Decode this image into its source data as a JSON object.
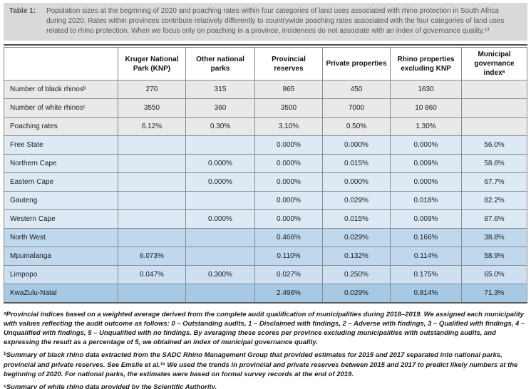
{
  "caption": {
    "label": "Table 1:",
    "text": "Population sizes at the beginning of 2020 and poaching rates within four categories of land uses associated with rhino protection in South Africa during 2020. Rates within provinces contribute relatively differently to countrywide poaching rates associated with the four categories of land uses related to rhino protection. When we focus only on poaching in a province, incidences do not associate with an index of governance quality.¹³"
  },
  "table": {
    "columns": [
      "",
      "Kruger National Park (KNP)",
      "Other national parks",
      "Provincial reserves",
      "Private properties",
      "Rhino properties excluding KNP",
      "Municipal governance indexᵃ"
    ],
    "rows": [
      {
        "label": "Number of black rhinosᵇ",
        "shade": "gray",
        "values": [
          "270",
          "315",
          "865",
          "450",
          "1630",
          ""
        ]
      },
      {
        "label": "Number of white rhinosᶜ",
        "shade": "gray",
        "values": [
          "3550",
          "360",
          "3500",
          "7000",
          "10 860",
          ""
        ]
      },
      {
        "label": "Poaching rates",
        "shade": "gray",
        "values": [
          "6.12%",
          "0.30%",
          "3.10%",
          "0.50%",
          "1.30%",
          ""
        ]
      },
      {
        "label": "Free State",
        "shade": "blue_light",
        "values": [
          "",
          "",
          "0.000%",
          "0.000%",
          "0.000%",
          "56.0%"
        ]
      },
      {
        "label": "Northern Cape",
        "shade": "blue_light",
        "values": [
          "",
          "0.000%",
          "0.000%",
          "0.015%",
          "0.009%",
          "58.6%"
        ]
      },
      {
        "label": "Eastern Cape",
        "shade": "blue_light",
        "values": [
          "",
          "0.000%",
          "0.000%",
          "0.000%",
          "0.000%",
          "67.7%"
        ]
      },
      {
        "label": "Gauteng",
        "shade": "blue_light",
        "values": [
          "",
          "",
          "0.000%",
          "0.029%",
          "0.018%",
          "82.2%"
        ]
      },
      {
        "label": "Western Cape",
        "shade": "blue_light",
        "values": [
          "",
          "0.000%",
          "0.000%",
          "0.015%",
          "0.009%",
          "87.6%"
        ]
      },
      {
        "label": "North West",
        "shade": "blue_med",
        "values": [
          "",
          "",
          "0.466%",
          "0.029%",
          "0.166%",
          "38.8%"
        ]
      },
      {
        "label": "Mpumalanga",
        "shade": "blue_med",
        "values": [
          "6.073%",
          "",
          "0.110%",
          "0.132%",
          "0.114%",
          "58.9%"
        ]
      },
      {
        "label": "Limpopo",
        "shade": "blue_med2",
        "values": [
          "0.047%",
          "0.300%",
          "0.027%",
          "0.250%",
          "0.175%",
          "65.0%"
        ]
      },
      {
        "label": "KwaZulu-Natal",
        "shade": "blue_dark",
        "values": [
          "",
          "",
          "2.496%",
          "0.029%",
          "0.814%",
          "71.3%"
        ]
      }
    ]
  },
  "footnotes": [
    "ᵃProvincial indices based on a weighted average derived from the complete audit qualification of municipalities during 2018–2019. We assigned each municipality with values reflecting the audit outcome as follows: 0 – Outstanding audits, 1 – Disclaimed with findings, 2 – Adverse with findings, 3 – Qualified with findings, 4 – Unqualified with findings, 5 – Unqualified with no findings. By averaging these scores per province excluding municipalities with outstanding audits, and expressing the result as a percentage of 5, we obtained an index of municipal governance quality.",
    "ᵇSummary of black rhino data extracted from the SADC Rhino Management Group that provided estimates for 2015 and 2017 separated into national parks, provincial and private reserves. See Emslie et al.¹⁸ We used the trends in provincial and private reserves between 2015 and 2017 to predict likely numbers at the beginning of 2020. For national parks, the estimates were based on formal survey records at the end of 2019.",
    "ᶜSummary of white rhino data provided by the Scientific Authority."
  ],
  "colors": {
    "caption_bg": "#d9d9d9",
    "caption_text": "#55575a",
    "border": "#8a8a8a",
    "heavy_rule": "#4c4c4c",
    "row_shades": {
      "gray": "#e9e9e9",
      "blue_light": "#dde9f5",
      "blue_med": "#c0d8ee",
      "blue_med2": "#cde0f1",
      "blue_dark": "#a6c9e5"
    }
  }
}
